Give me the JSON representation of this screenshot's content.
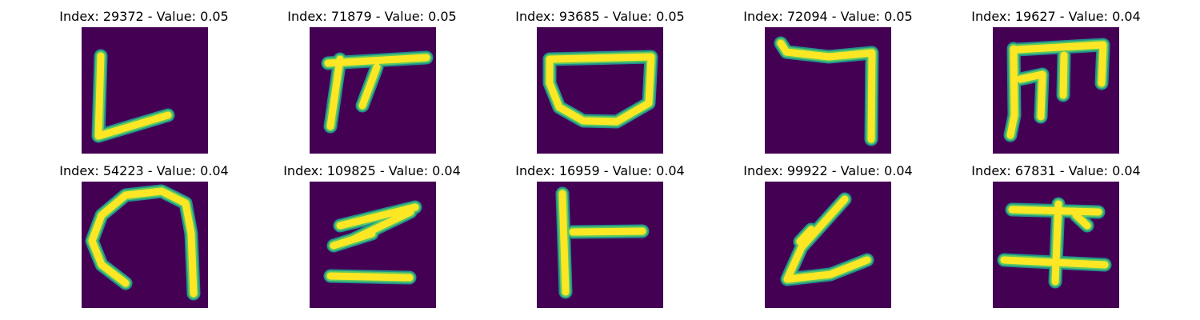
{
  "colors": {
    "background": "#440154",
    "stroke_outer": "#21918c",
    "stroke_mid": "#5ec962",
    "stroke_core": "#fde725"
  },
  "panels": [
    {
      "title": "Index: 29372 - Value: 0.05",
      "glyph": "L-shaped stroke",
      "strokes": [
        [
          [
            24,
            36
          ],
          [
            21,
            136
          ],
          [
            108,
            110
          ]
        ]
      ]
    },
    {
      "title": "Index: 71879 - Value: 0.05",
      "glyph": "rake stroke",
      "strokes": [
        [
          [
            23,
            45
          ],
          [
            146,
            38
          ]
        ],
        [
          [
            38,
            40
          ],
          [
            26,
            124
          ]
        ],
        [
          [
            84,
            50
          ],
          [
            66,
            98
          ]
        ]
      ]
    },
    {
      "title": "Index: 93685 - Value: 0.05",
      "glyph": "bowl stroke",
      "strokes": [
        [
          [
            16,
            40
          ],
          [
            143,
            37
          ],
          [
            140,
            95
          ],
          [
            100,
            118
          ],
          [
            58,
            117
          ],
          [
            28,
            100
          ],
          [
            16,
            70
          ],
          [
            16,
            40
          ]
        ]
      ]
    },
    {
      "title": "Index: 72094 - Value: 0.05",
      "glyph": "hook stroke",
      "strokes": [
        [
          [
            20,
            20
          ],
          [
            27,
            31
          ],
          [
            80,
            37
          ],
          [
            134,
            32
          ],
          [
            133,
            140
          ]
        ]
      ]
    },
    {
      "title": "Index: 19627 - Value: 0.04",
      "glyph": "E stroke",
      "strokes": [
        [
          [
            26,
            27
          ],
          [
            27,
            110
          ],
          [
            22,
            135
          ]
        ],
        [
          [
            30,
            28
          ],
          [
            138,
            22
          ],
          [
            136,
            70
          ]
        ],
        [
          [
            89,
            35
          ],
          [
            88,
            85
          ]
        ],
        [
          [
            34,
            65
          ],
          [
            62,
            59
          ],
          [
            60,
            112
          ]
        ]
      ]
    },
    {
      "title": "Index: 54223 - Value: 0.04",
      "glyph": "arch stroke",
      "strokes": [
        [
          [
            55,
            127
          ],
          [
            25,
            104
          ],
          [
            13,
            74
          ],
          [
            25,
            42
          ],
          [
            55,
            17
          ],
          [
            100,
            12
          ],
          [
            130,
            27
          ],
          [
            137,
            65
          ],
          [
            140,
            140
          ]
        ]
      ]
    },
    {
      "title": "Index: 109825 - Value: 0.04",
      "glyph": "slanted E stroke",
      "strokes": [
        [
          [
            38,
            55
          ],
          [
            132,
            32
          ]
        ],
        [
          [
            55,
            72
          ],
          [
            126,
            38
          ]
        ],
        [
          [
            30,
            80
          ],
          [
            78,
            65
          ]
        ],
        [
          [
            26,
            118
          ],
          [
            125,
            120
          ]
        ]
      ]
    },
    {
      "title": "Index: 16959 - Value: 0.04",
      "glyph": "T stroke",
      "strokes": [
        [
          [
            32,
            15
          ],
          [
            36,
            138
          ]
        ],
        [
          [
            45,
            63
          ],
          [
            132,
            62
          ]
        ]
      ]
    },
    {
      "title": "Index: 99922 - Value: 0.04",
      "glyph": "hooked L stroke",
      "strokes": [
        [
          [
            100,
            22
          ],
          [
            46,
            82
          ],
          [
            28,
            122
          ],
          [
            82,
            116
          ],
          [
            128,
            98
          ]
        ],
        [
          [
            58,
            60
          ],
          [
            44,
            75
          ]
        ]
      ]
    },
    {
      "title": "Index: 67831 - Value: 0.04",
      "glyph": "I stroke",
      "strokes": [
        [
          [
            24,
            35
          ],
          [
            132,
            38
          ]
        ],
        [
          [
            82,
            28
          ],
          [
            78,
            125
          ]
        ],
        [
          [
            14,
            98
          ],
          [
            140,
            104
          ]
        ],
        [
          [
            104,
            42
          ],
          [
            118,
            55
          ]
        ]
      ]
    }
  ]
}
